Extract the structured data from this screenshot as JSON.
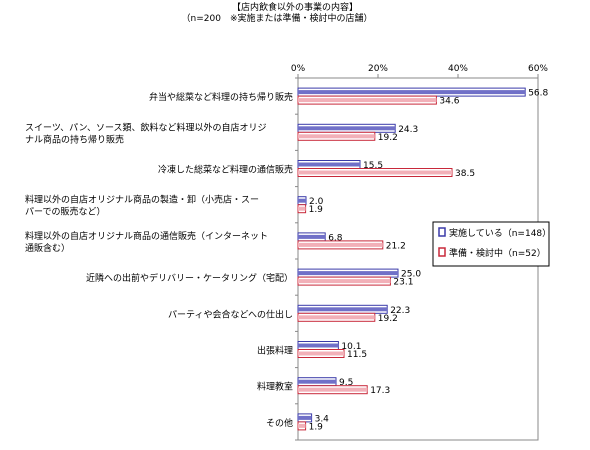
{
  "chart_data": {
    "type": "bar",
    "orientation": "horizontal",
    "title": "【店内飲食以外の事業の内容】",
    "subtitle": "（n=200　※実施または準備・検討中の店舗）",
    "xlim": [
      0,
      60
    ],
    "xticks": [
      "0%",
      "20%",
      "40%",
      "60%"
    ],
    "grid": false,
    "legend_position": "right",
    "categories": [
      [
        "弁当や総菜など料理の持ち帰り販売"
      ],
      [
        "スイーツ、パン、ソース類、飲料など料理以外の自店オリジ",
        "ナル商品の持ち帰り販売"
      ],
      [
        "冷凍した総菜など料理の通信販売"
      ],
      [
        "料理以外の自店オリジナル商品の製造・卸（小売店・スー",
        "パーでの販売など）"
      ],
      [
        "料理以外の自店オリジナル商品の通信販売（インターネット",
        "通販含む）"
      ],
      [
        "近隣への出前やデリバリー・ケータリング（宅配）"
      ],
      [
        "パーティや会合などへの仕出し"
      ],
      [
        "出張料理"
      ],
      [
        "料理教室"
      ],
      [
        "その他"
      ]
    ],
    "series": [
      {
        "name": "実施している（n=148）",
        "color": "#3a3aa8",
        "values": [
          56.8,
          24.3,
          15.5,
          2.0,
          6.8,
          25.0,
          22.3,
          10.1,
          9.5,
          3.4
        ],
        "labels": [
          "56.8",
          "24.3",
          "15.5",
          "2.0",
          "6.8",
          "25.0",
          "22.3",
          "10.1",
          "9.5",
          "3.4"
        ]
      },
      {
        "name": "準備・検討中（n=52）",
        "color": "#c8283a",
        "values": [
          34.6,
          19.2,
          38.5,
          1.9,
          21.2,
          23.1,
          19.2,
          11.5,
          17.3,
          1.9
        ],
        "labels": [
          "34.6",
          "19.2",
          "38.5",
          "1.9",
          "21.2",
          "23.1",
          "19.2",
          "11.5",
          "17.3",
          "1.9"
        ]
      }
    ]
  }
}
